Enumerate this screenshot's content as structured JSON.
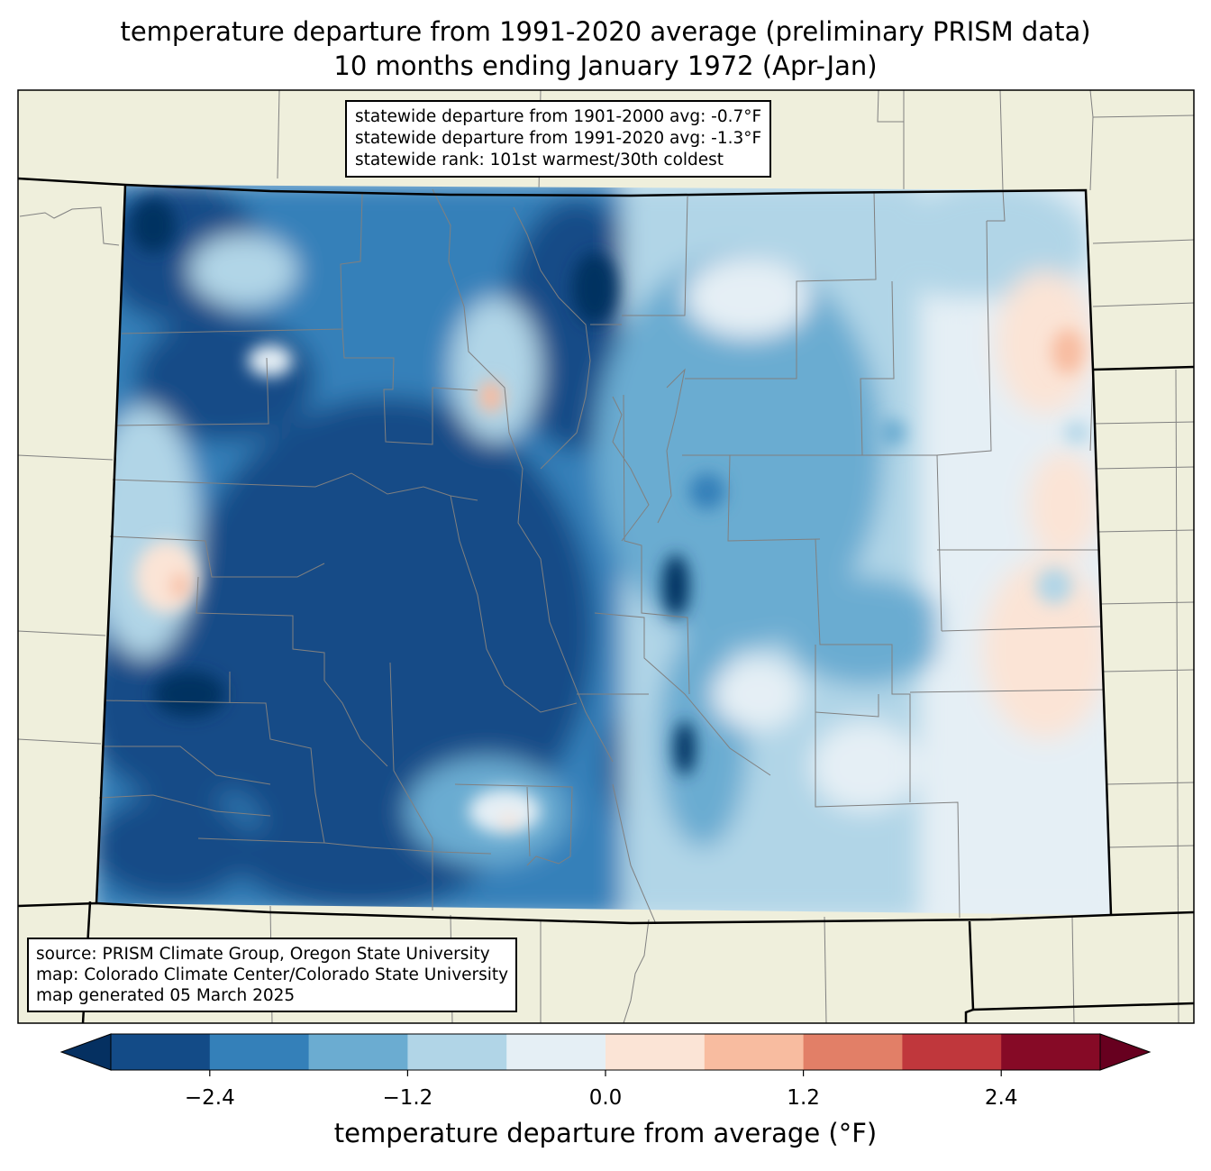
{
  "title": {
    "line1": "temperature departure from 1991-2020 average (preliminary PRISM data)",
    "line2": "10 months ending January 1972 (Apr-Jan)"
  },
  "stats": {
    "line1": "statewide departure from 1901-2000 avg: -0.7°F",
    "line2": "statewide departure from 1991-2020 avg: -1.3°F",
    "line3": "statewide rank: 101st warmest/30th coldest"
  },
  "source": {
    "line1": "source: PRISM Climate Group, Oregon State University",
    "line2": "map: Colorado Climate Center/Colorado State University",
    "line3": "map generated 05 March 2025"
  },
  "colorbar": {
    "label": "temperature departure from average (°F)",
    "bins": [
      -3.0,
      -2.4,
      -1.8,
      -1.2,
      -0.6,
      0.0,
      0.6,
      1.2,
      1.8,
      2.4,
      3.0
    ],
    "colors": [
      "#134b87",
      "#3480b9",
      "#6bacd1",
      "#b1d5e7",
      "#e5eff5",
      "#fbe4d6",
      "#f8bca0",
      "#e27f67",
      "#c0373c",
      "#860a26"
    ],
    "under_color": "#053061",
    "over_color": "#67001f",
    "ticks": [
      {
        "value": -2.4,
        "label": "−2.4"
      },
      {
        "value": -1.2,
        "label": "−1.2"
      },
      {
        "value": 0.0,
        "label": "0.0"
      },
      {
        "value": 1.2,
        "label": "1.2"
      },
      {
        "value": 2.4,
        "label": "2.4"
      }
    ]
  },
  "colors": {
    "land": "#efefdc",
    "county_lines": "#808080",
    "state_lines": "#000000"
  }
}
